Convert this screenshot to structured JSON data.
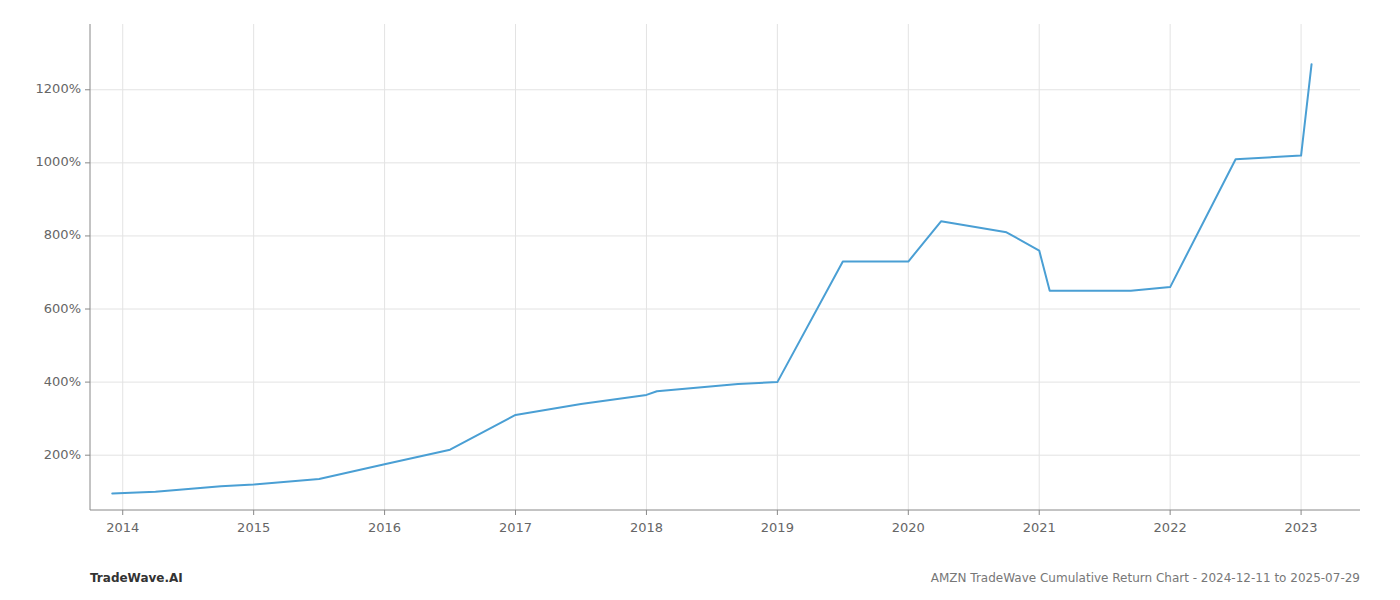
{
  "chart_data": {
    "type": "line",
    "x": [
      2013.92,
      2014.25,
      2014.75,
      2015.0,
      2015.5,
      2016.0,
      2016.5,
      2017.0,
      2017.5,
      2018.0,
      2018.08,
      2018.7,
      2019.0,
      2019.5,
      2020.0,
      2020.25,
      2020.75,
      2021.0,
      2021.08,
      2021.7,
      2022.0,
      2022.5,
      2023.0,
      2023.08
    ],
    "values": [
      95,
      100,
      115,
      120,
      135,
      175,
      215,
      310,
      340,
      365,
      375,
      395,
      400,
      730,
      730,
      840,
      810,
      760,
      650,
      650,
      660,
      1010,
      1020,
      1270
    ],
    "color": "#4a9fd4",
    "xlim": [
      2013.75,
      2023.45
    ],
    "ylim": [
      50,
      1380
    ],
    "xticks": [
      2014,
      2015,
      2016,
      2017,
      2018,
      2019,
      2020,
      2021,
      2022,
      2023
    ],
    "yticks": [
      {
        "value": 200,
        "label": "200%"
      },
      {
        "value": 400,
        "label": "400%"
      },
      {
        "value": 600,
        "label": "600%"
      },
      {
        "value": 800,
        "label": "800%"
      },
      {
        "value": 1000,
        "label": "1000%"
      },
      {
        "value": 1200,
        "label": "1200%"
      }
    ],
    "grid": true,
    "annotations": [
      "TradeWave.AI",
      "AMZN TradeWave Cumulative Return Chart - 2024-12-11 to 2025-07-29"
    ]
  }
}
